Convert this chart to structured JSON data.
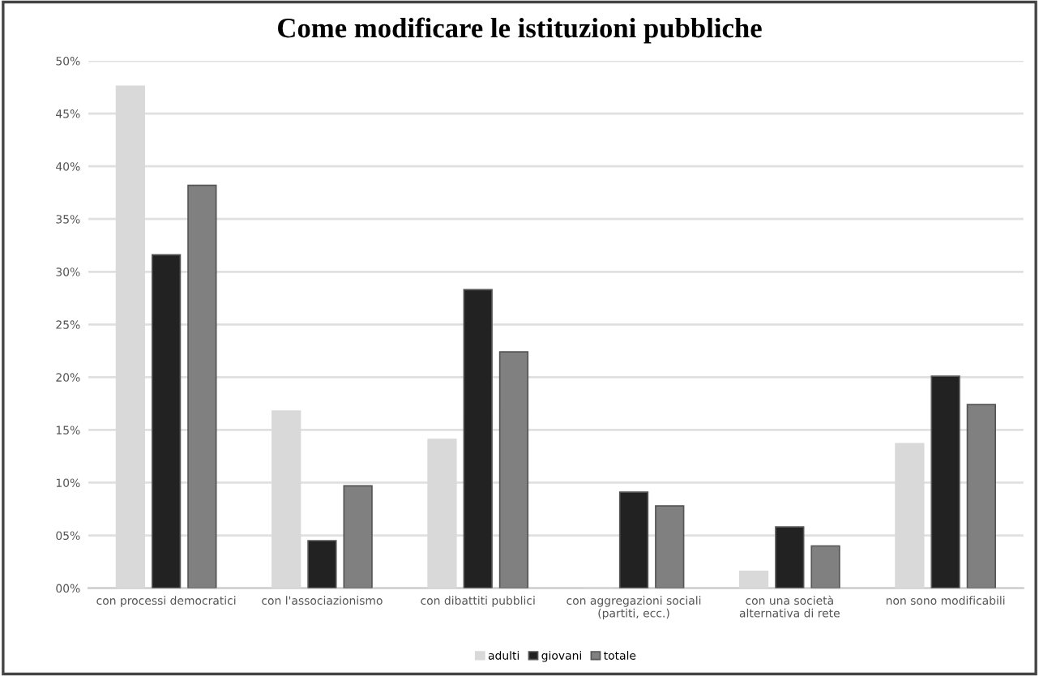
{
  "chart_data": {
    "type": "bar",
    "title": "Come modificare le istituzioni pubbliche",
    "categories": [
      "con processi democratici",
      "con l'associazionismo",
      "con dibattiti pubblici",
      "con aggregazioni sociali (partiti, ecc.)",
      "con una società alternativa di rete",
      "non sono modificabili"
    ],
    "series": [
      {
        "name": "adulti",
        "color": "#d9d9d9",
        "values": [
          47.6,
          16.8,
          14.1,
          0,
          1.6,
          13.7
        ]
      },
      {
        "name": "giovani",
        "color": "#222222",
        "values": [
          31.6,
          4.5,
          28.3,
          9.1,
          5.8,
          20.1
        ]
      },
      {
        "name": "totale",
        "color": "#808080",
        "values": [
          38.2,
          9.7,
          22.4,
          7.8,
          4.0,
          17.4
        ]
      }
    ],
    "ylim": [
      0,
      50
    ],
    "yticks": [
      {
        "value": 0,
        "label": "00%"
      },
      {
        "value": 5,
        "label": "05%"
      },
      {
        "value": 10,
        "label": "10%"
      },
      {
        "value": 15,
        "label": "15%"
      },
      {
        "value": 20,
        "label": "20%"
      },
      {
        "value": 25,
        "label": "25%"
      },
      {
        "value": 30,
        "label": "30%"
      },
      {
        "value": 35,
        "label": "35%"
      },
      {
        "value": 40,
        "label": "40%"
      },
      {
        "value": 45,
        "label": "45%"
      },
      {
        "value": 50,
        "label": "50%"
      }
    ],
    "grid": "y",
    "legend": "bottom"
  }
}
